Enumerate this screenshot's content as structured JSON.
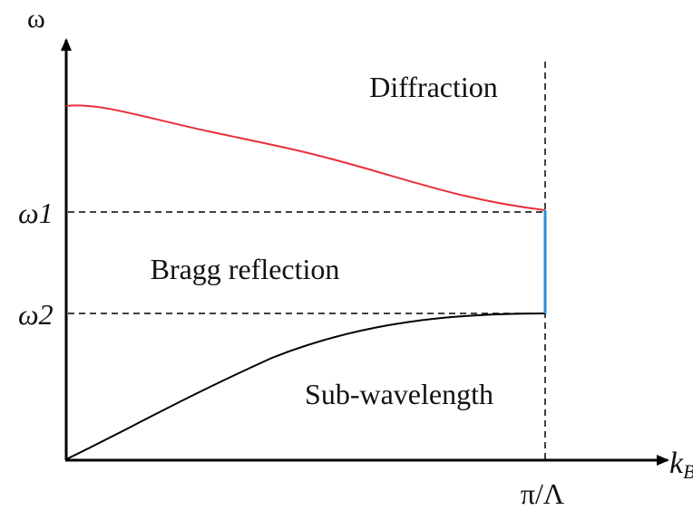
{
  "axes": {
    "y_label": "ω",
    "x_label": "k",
    "x_label_sub": "B",
    "x_tick": "π/Λ"
  },
  "levels": {
    "omega1": "ω1",
    "omega2": "ω2"
  },
  "regions": {
    "upper": "Diffraction",
    "gap": "Bragg reflection",
    "lower": "Sub-wavelength"
  }
}
